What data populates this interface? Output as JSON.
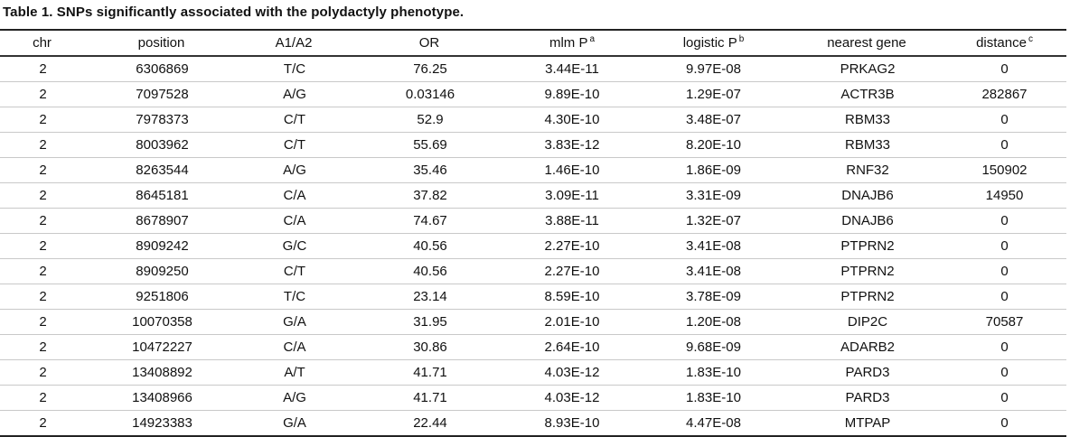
{
  "table": {
    "caption": "Table 1.  SNPs significantly associated with the polydactyly phenotype.",
    "headers": [
      {
        "label": "chr",
        "sup": ""
      },
      {
        "label": "position",
        "sup": ""
      },
      {
        "label": "A1/A2",
        "sup": ""
      },
      {
        "label": "OR",
        "sup": ""
      },
      {
        "label": "mlm P",
        "sup": "a"
      },
      {
        "label": "logistic P",
        "sup": "b"
      },
      {
        "label": "nearest gene",
        "sup": ""
      },
      {
        "label": "distance",
        "sup": "c"
      }
    ],
    "rows": [
      [
        "2",
        "6306869",
        "T/C",
        "76.25",
        "3.44E-11",
        "9.97E-08",
        "PRKAG2",
        "0"
      ],
      [
        "2",
        "7097528",
        "A/G",
        "0.03146",
        "9.89E-10",
        "1.29E-07",
        "ACTR3B",
        "282867"
      ],
      [
        "2",
        "7978373",
        "C/T",
        "52.9",
        "4.30E-10",
        "3.48E-07",
        "RBM33",
        "0"
      ],
      [
        "2",
        "8003962",
        "C/T",
        "55.69",
        "3.83E-12",
        "8.20E-10",
        "RBM33",
        "0"
      ],
      [
        "2",
        "8263544",
        "A/G",
        "35.46",
        "1.46E-10",
        "1.86E-09",
        "RNF32",
        "150902"
      ],
      [
        "2",
        "8645181",
        "C/A",
        "37.82",
        "3.09E-11",
        "3.31E-09",
        "DNAJB6",
        "14950"
      ],
      [
        "2",
        "8678907",
        "C/A",
        "74.67",
        "3.88E-11",
        "1.32E-07",
        "DNAJB6",
        "0"
      ],
      [
        "2",
        "8909242",
        "G/C",
        "40.56",
        "2.27E-10",
        "3.41E-08",
        "PTPRN2",
        "0"
      ],
      [
        "2",
        "8909250",
        "C/T",
        "40.56",
        "2.27E-10",
        "3.41E-08",
        "PTPRN2",
        "0"
      ],
      [
        "2",
        "9251806",
        "T/C",
        "23.14",
        "8.59E-10",
        "3.78E-09",
        "PTPRN2",
        "0"
      ],
      [
        "2",
        "10070358",
        "G/A",
        "31.95",
        "2.01E-10",
        "1.20E-08",
        "DIP2C",
        "70587"
      ],
      [
        "2",
        "10472227",
        "C/A",
        "30.86",
        "2.64E-10",
        "9.68E-09",
        "ADARB2",
        "0"
      ],
      [
        "2",
        "13408892",
        "A/T",
        "41.71",
        "4.03E-12",
        "1.83E-10",
        "PARD3",
        "0"
      ],
      [
        "2",
        "13408966",
        "A/G",
        "41.71",
        "4.03E-12",
        "1.83E-10",
        "PARD3",
        "0"
      ],
      [
        "2",
        "14923383",
        "G/A",
        "22.44",
        "8.93E-10",
        "4.47E-08",
        "MTPAP",
        "0"
      ]
    ]
  }
}
